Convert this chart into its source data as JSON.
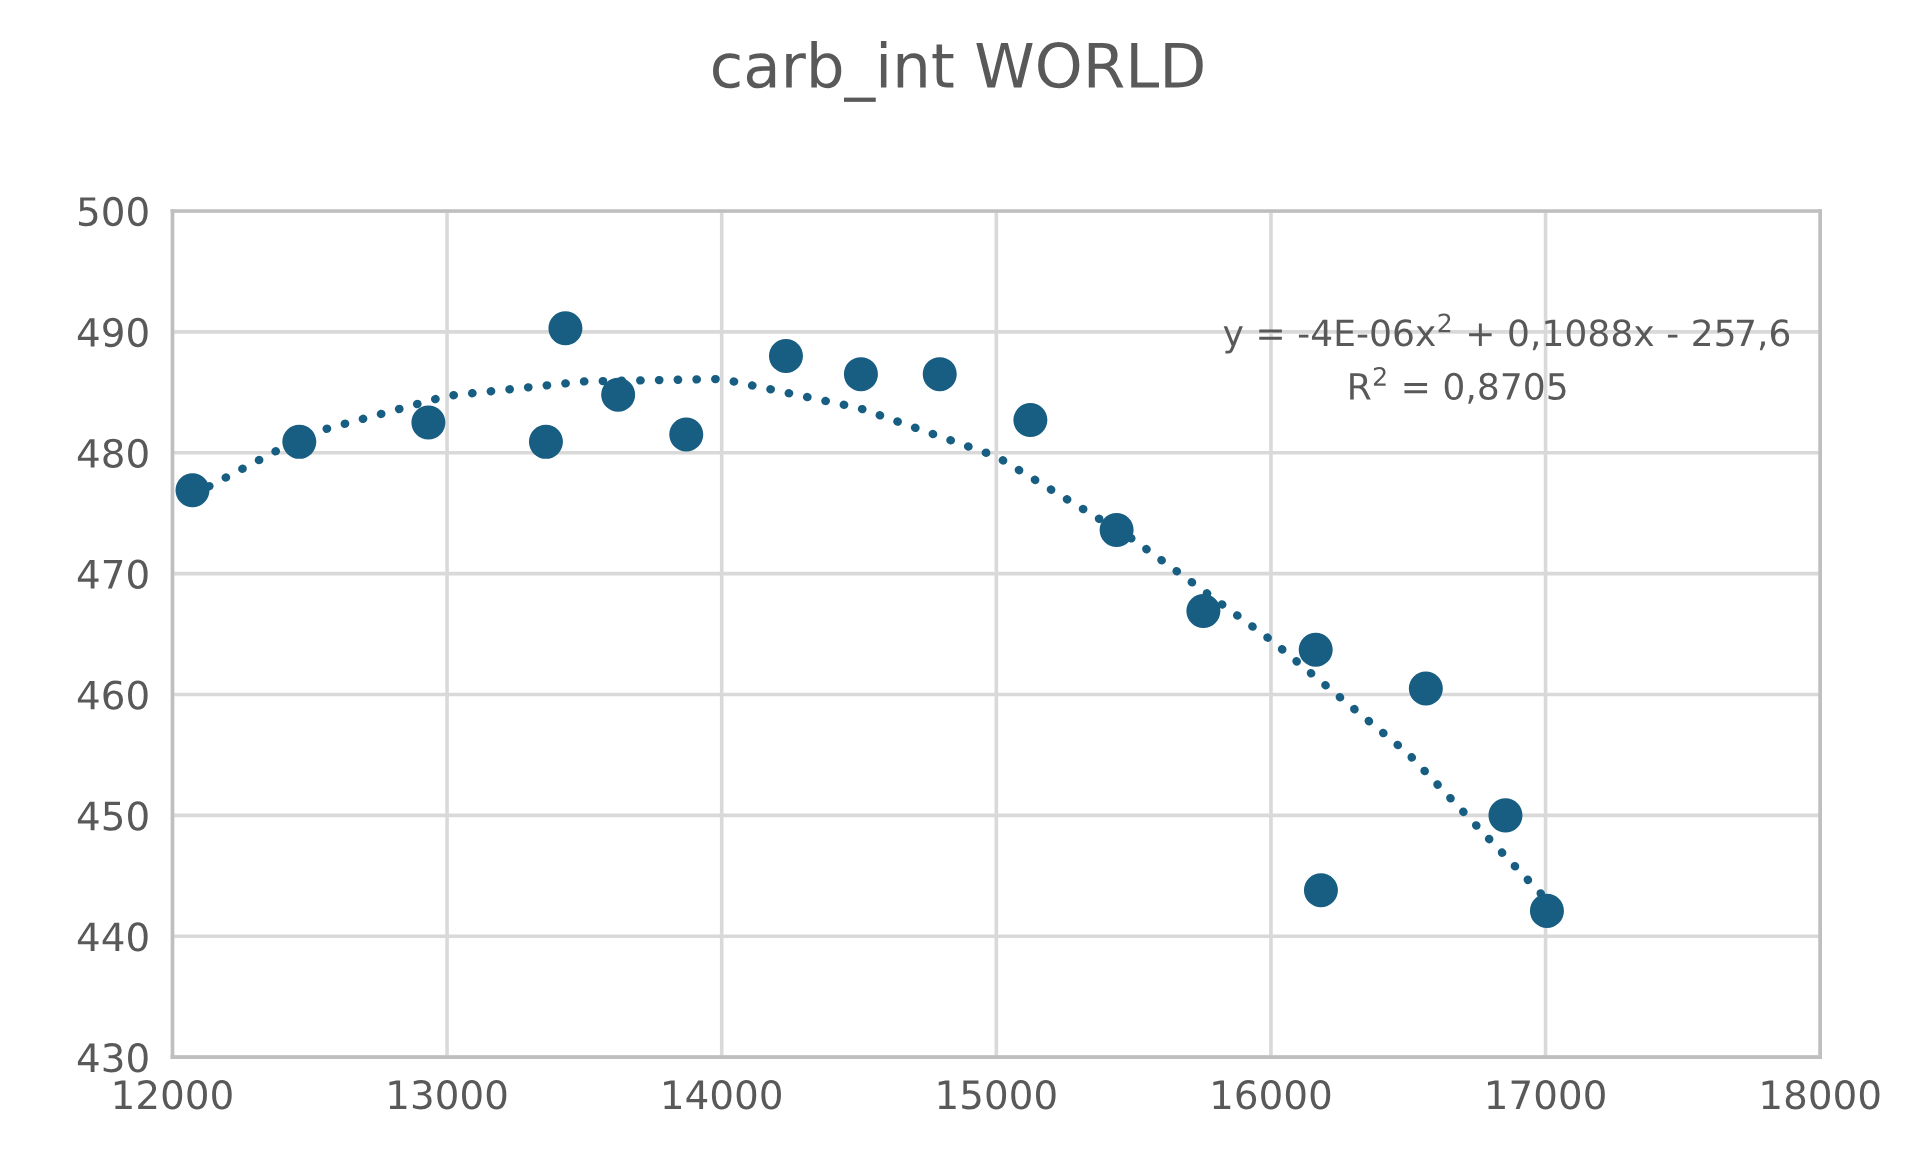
{
  "chart_data": {
    "type": "scatter",
    "title": "carb_int WORLD",
    "series": [
      {
        "color": "#175e82",
        "marker": "circle",
        "x": [
          12073,
          12462,
          12932,
          13360,
          13431,
          13623,
          13871,
          14234,
          14507,
          14794,
          15124,
          15438,
          15754,
          16163,
          16182,
          16564,
          16854,
          17005
        ],
        "values": [
          476.9,
          480.9,
          482.5,
          480.9,
          490.3,
          484.8,
          481.5,
          488.0,
          486.5,
          486.5,
          482.7,
          473.6,
          466.9,
          463.7,
          443.8,
          460.5,
          450.0,
          442.1
        ]
      },
      {
        "type": "line",
        "color": "#175e82",
        "line_style": "dotted",
        "x": [
          12073,
          12500,
          13000,
          13500,
          14000,
          14500,
          15000,
          15500,
          16000,
          16500,
          17005
        ],
        "values": [
          476.5,
          481.6,
          484.7,
          485.9,
          486.1,
          483.7,
          479.7,
          472.8,
          464.5,
          455.1,
          443.0
        ]
      }
    ],
    "annotations": [
      "y = -4E-06x$^{2}$ + 0,1088x - 257,6",
      "R$^{2}$ = 0,8705"
    ],
    "xlim": [
      12000,
      18000
    ],
    "xticks": [
      12000,
      13000,
      14000,
      15000,
      16000,
      17000,
      18000
    ],
    "ylim": [
      430,
      500
    ],
    "yticks": [
      430,
      440,
      450,
      460,
      470,
      480,
      490,
      500
    ],
    "grid": true,
    "legend": false
  }
}
